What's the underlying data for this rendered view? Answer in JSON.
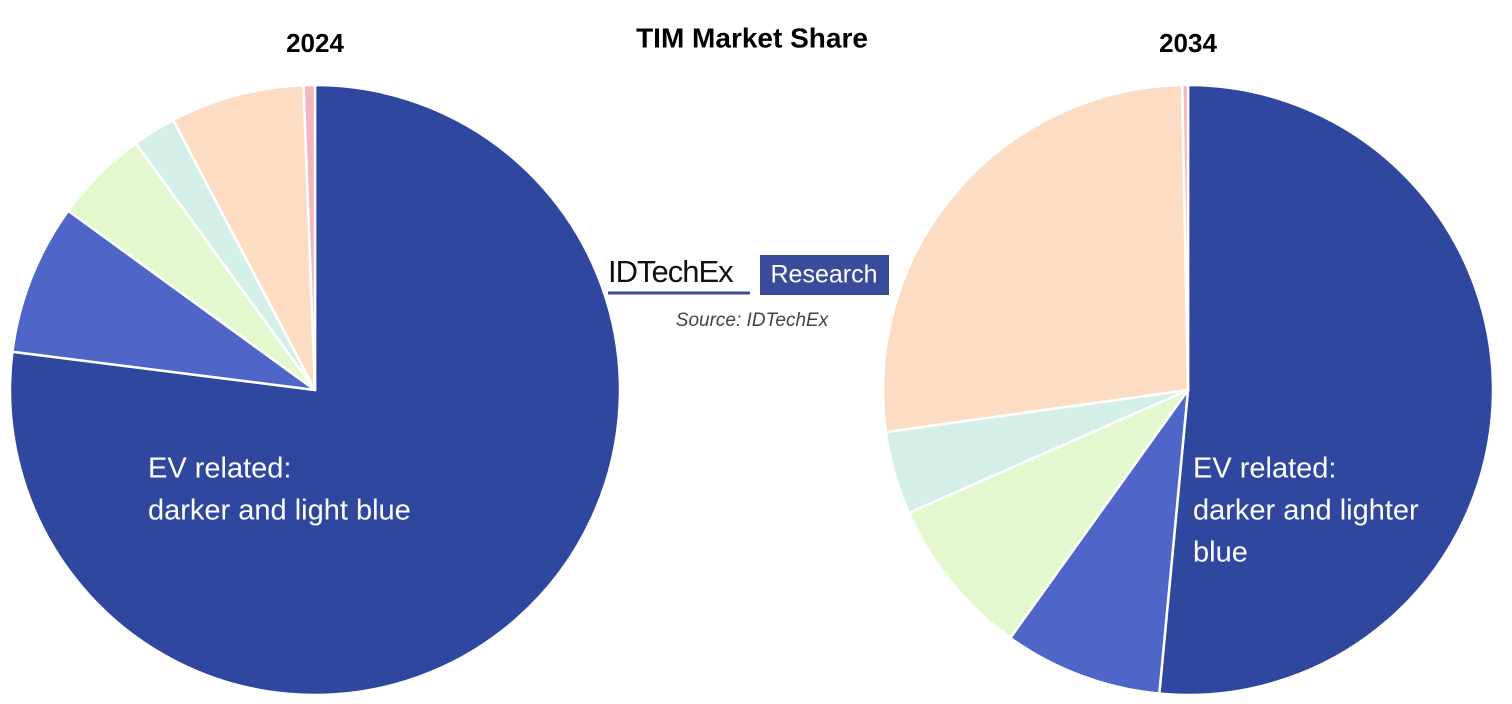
{
  "title": "TIM Market Share",
  "logo": {
    "name": "IDTechEx",
    "tag": "Research"
  },
  "source": "Source: IDTechEx",
  "chart_data": [
    {
      "type": "pie",
      "title": "2024",
      "values": [
        77,
        8,
        5,
        2.3,
        7.1,
        0.6
      ],
      "colors": [
        "#30479f",
        "#4f66c8",
        "#e4f8d0",
        "#d3efe7",
        "#fddcc4",
        "#f3b6c0"
      ],
      "annotation": [
        "EV related:",
        "darker and light blue"
      ]
    },
    {
      "type": "pie",
      "title": "2034",
      "values": [
        51.5,
        8.4,
        8.5,
        4.4,
        26.9,
        0.3
      ],
      "colors": [
        "#30479f",
        "#4f66c8",
        "#e4f8d0",
        "#d3efe7",
        "#fddcc4",
        "#f3b6c0"
      ],
      "annotation": [
        "EV related:",
        "darker and lighter",
        "blue"
      ]
    }
  ]
}
